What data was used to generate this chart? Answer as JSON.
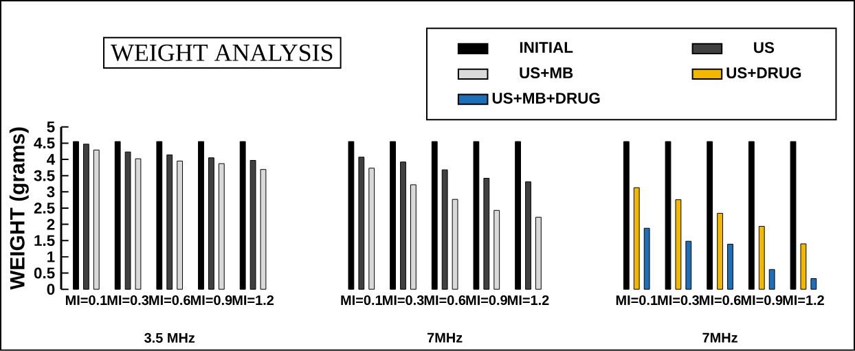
{
  "chart_data": {
    "type": "bar",
    "title": "WEIGHT ANALYSIS",
    "ylabel": "WEIGHT (grams)",
    "categories": [
      "MI=0.1",
      "MI=0.3",
      "MI=0.6",
      "MI=0.9",
      "MI=1.2",
      "MI=0.1",
      "MI=0.3",
      "MI=0.6",
      "MI=0.9",
      "MI=1.2",
      "MI=0.1",
      "MI=0.3",
      "MI=0.6",
      "MI=0.9",
      "MI=1.2"
    ],
    "series": [
      {
        "name": "INITIAL",
        "color": "#000000",
        "values": [
          4.55,
          4.55,
          4.55,
          4.55,
          4.55,
          4.55,
          4.55,
          4.55,
          4.55,
          4.55,
          4.55,
          4.55,
          4.55,
          4.55,
          4.55
        ]
      },
      {
        "name": "US",
        "color": "#404040",
        "values": [
          4.47,
          4.23,
          4.14,
          4.05,
          3.97,
          4.07,
          3.92,
          3.68,
          3.42,
          3.31,
          null,
          null,
          null,
          null,
          null
        ]
      },
      {
        "name": "US+MB",
        "color": "#d9d9d9",
        "values": [
          4.29,
          4.02,
          3.95,
          3.87,
          3.69,
          3.73,
          3.22,
          2.77,
          2.43,
          2.22,
          null,
          null,
          null,
          null,
          null
        ]
      },
      {
        "name": "US+DRUG",
        "color": "#f2b800",
        "values": [
          null,
          null,
          null,
          null,
          null,
          null,
          null,
          null,
          null,
          null,
          3.13,
          2.76,
          2.34,
          1.94,
          1.4
        ]
      },
      {
        "name": "US+MB+DRUG",
        "color": "#1f6fb8",
        "values": [
          null,
          null,
          null,
          null,
          null,
          null,
          null,
          null,
          null,
          null,
          1.88,
          1.48,
          1.39,
          0.61,
          0.33
        ]
      }
    ],
    "ylim": [
      0,
      5
    ],
    "yticks": [
      0,
      0.5,
      1,
      1.5,
      2,
      2.5,
      3,
      3.5,
      4,
      4.5,
      5
    ],
    "annotations": [
      "3.5 MHz",
      "7MHz",
      "7MHz"
    ],
    "legend": "top right"
  }
}
